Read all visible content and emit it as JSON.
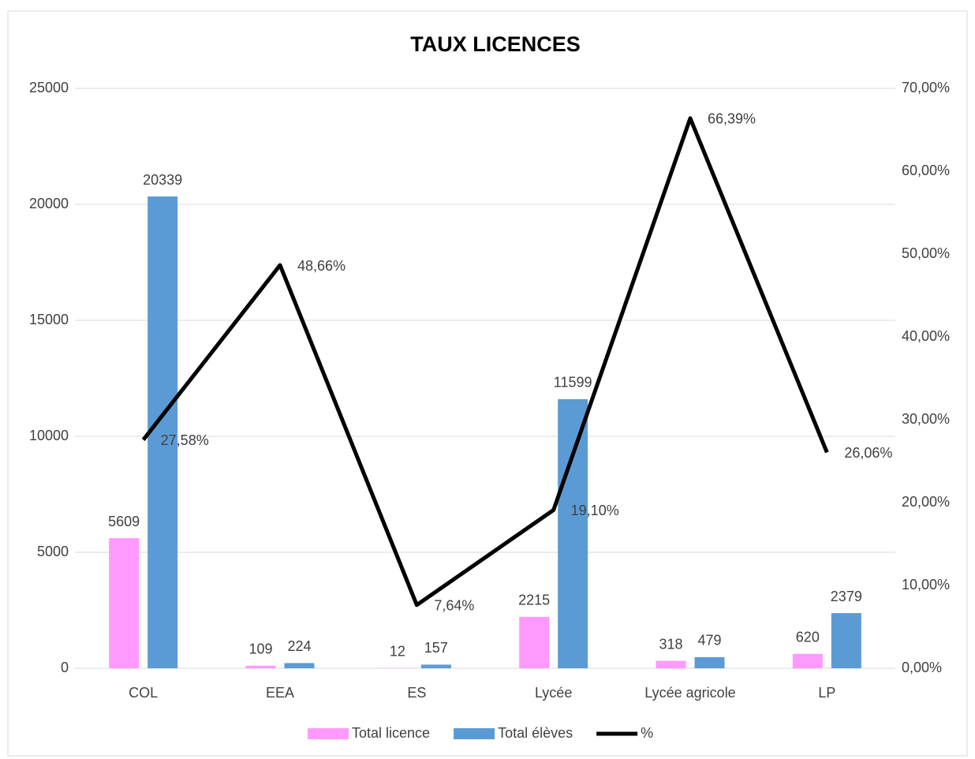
{
  "chart_data": {
    "type": "bar_line",
    "title": "TAUX LICENCES",
    "categories": [
      "COL",
      "EEA",
      "ES",
      "Lycée",
      "Lycée agricole",
      "LP"
    ],
    "series": [
      {
        "name": "Total licence",
        "type": "bar",
        "color": "#ff99ff",
        "values": [
          5609,
          109,
          12,
          2215,
          318,
          620
        ]
      },
      {
        "name": "Total élèves",
        "type": "bar",
        "color": "#5b9bd5",
        "values": [
          20339,
          224,
          157,
          11599,
          479,
          2379
        ]
      },
      {
        "name": "%",
        "type": "line",
        "axis": "y2",
        "color": "#000000",
        "values": [
          27.58,
          48.66,
          7.64,
          19.1,
          66.39,
          26.06
        ],
        "value_labels": [
          "27,58%",
          "48,66%",
          "7,64%",
          "19,10%",
          "66,39%",
          "26,06%"
        ]
      }
    ],
    "ylim": [
      0,
      25000
    ],
    "yticks": [
      0,
      5000,
      10000,
      15000,
      20000,
      25000
    ],
    "y2lim": [
      0,
      70
    ],
    "y2ticks": [
      {
        "value": 0,
        "label": "0,00%"
      },
      {
        "value": 10,
        "label": "10,00%"
      },
      {
        "value": 20,
        "label": "20,00%"
      },
      {
        "value": 30,
        "label": "30,00%"
      },
      {
        "value": 40,
        "label": "40,00%"
      },
      {
        "value": 50,
        "label": "50,00%"
      },
      {
        "value": 60,
        "label": "60,00%"
      },
      {
        "value": 70,
        "label": "70,00%"
      }
    ],
    "grid": true,
    "legend": "bottom"
  }
}
